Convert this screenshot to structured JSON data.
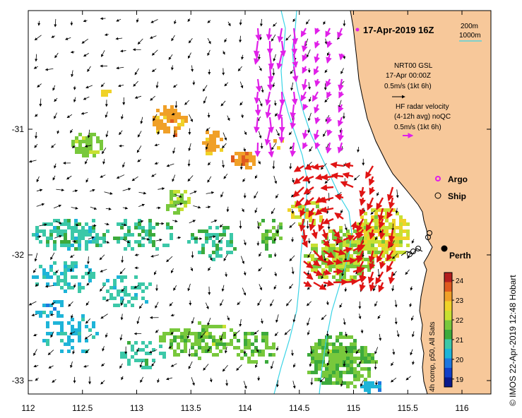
{
  "title": "17-Apr-2019 16Z",
  "depth_legend": {
    "contour_200": "200m",
    "contour_1000": "1000m"
  },
  "model_legend": {
    "line1": "NRT00 GSL",
    "line2": "17-Apr 00:00Z",
    "line3": "0.5m/s (1kt 6h)"
  },
  "radar_legend": {
    "line1": "HF radar velocity",
    "line2": "(4-12h avg) noQC",
    "line3": "0.5m/s (1kt 6h)"
  },
  "markers": {
    "argo_label": "Argo",
    "ship_label": "Ship",
    "city_label": "Perth"
  },
  "colorbar": {
    "ticks": [
      "19",
      "20",
      "21",
      "22",
      "23",
      "24"
    ],
    "caption": "4h comp, p50, All Sats",
    "min": 18.6,
    "max": 24.4,
    "colors": [
      "#0a1a8c",
      "#1240c8",
      "#1e78e0",
      "#1eb4d8",
      "#3cc8a8",
      "#3caa3c",
      "#78c83c",
      "#c8e032",
      "#f0d228",
      "#f0a028",
      "#e05a1e",
      "#b41e1e"
    ]
  },
  "x_axis": {
    "ticks": [
      "112",
      "112.5",
      "113",
      "113.5",
      "114",
      "114.5",
      "115",
      "115.5",
      "116"
    ]
  },
  "y_axis": {
    "ticks": [
      "-31",
      "-32",
      "-33"
    ]
  },
  "credit": "© IMOS 22-Apr-2019 12:48 Hobart",
  "colors": {
    "land": "#f7c89a",
    "depth_line": "#3ad4e6",
    "radar": "#e01414",
    "model": "#e020e8"
  }
}
